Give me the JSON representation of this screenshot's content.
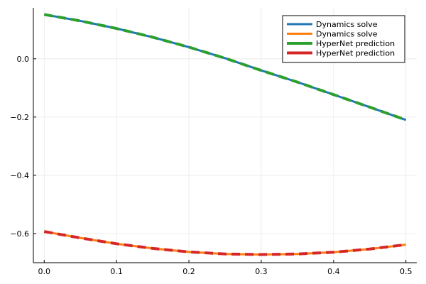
{
  "chart_data": {
    "type": "line",
    "title": "",
    "xlabel": "",
    "ylabel": "",
    "xlim": [
      -0.015,
      0.515
    ],
    "ylim": [
      -0.7,
      0.175
    ],
    "xticks": [
      0.0,
      0.1,
      0.2,
      0.3,
      0.4,
      0.5
    ],
    "xtick_labels": [
      "0.0",
      "0.1",
      "0.2",
      "0.3",
      "0.4",
      "0.5"
    ],
    "yticks": [
      0.0,
      -0.2,
      -0.4,
      -0.6
    ],
    "ytick_labels": [
      "0.0",
      "−0.2",
      "−0.4",
      "−0.6"
    ],
    "grid": true,
    "legend_position": "top-right",
    "x": [
      0.0,
      0.05,
      0.1,
      0.15,
      0.2,
      0.25,
      0.3,
      0.35,
      0.4,
      0.45,
      0.5
    ],
    "series": [
      {
        "name": "Dynamics solve",
        "color": "#1f77b4",
        "style": "solid",
        "values": [
          0.152,
          0.13,
          0.104,
          0.074,
          0.04,
          0.002,
          -0.04,
          -0.08,
          -0.123,
          -0.166,
          -0.21
        ]
      },
      {
        "name": "Dynamics solve",
        "color": "#ff7f0e",
        "style": "solid",
        "values": [
          -0.593,
          -0.615,
          -0.635,
          -0.651,
          -0.663,
          -0.67,
          -0.672,
          -0.67,
          -0.664,
          -0.653,
          -0.638
        ]
      },
      {
        "name": "HyperNet prediction",
        "color": "#2ca02c",
        "style": "dashed",
        "values": [
          0.152,
          0.13,
          0.104,
          0.074,
          0.04,
          0.002,
          -0.04,
          -0.08,
          -0.123,
          -0.166,
          -0.21
        ]
      },
      {
        "name": "HyperNet prediction",
        "color": "#d62728",
        "style": "dashed",
        "values": [
          -0.593,
          -0.615,
          -0.635,
          -0.651,
          -0.663,
          -0.67,
          -0.672,
          -0.67,
          -0.664,
          -0.653,
          -0.638
        ]
      }
    ]
  }
}
